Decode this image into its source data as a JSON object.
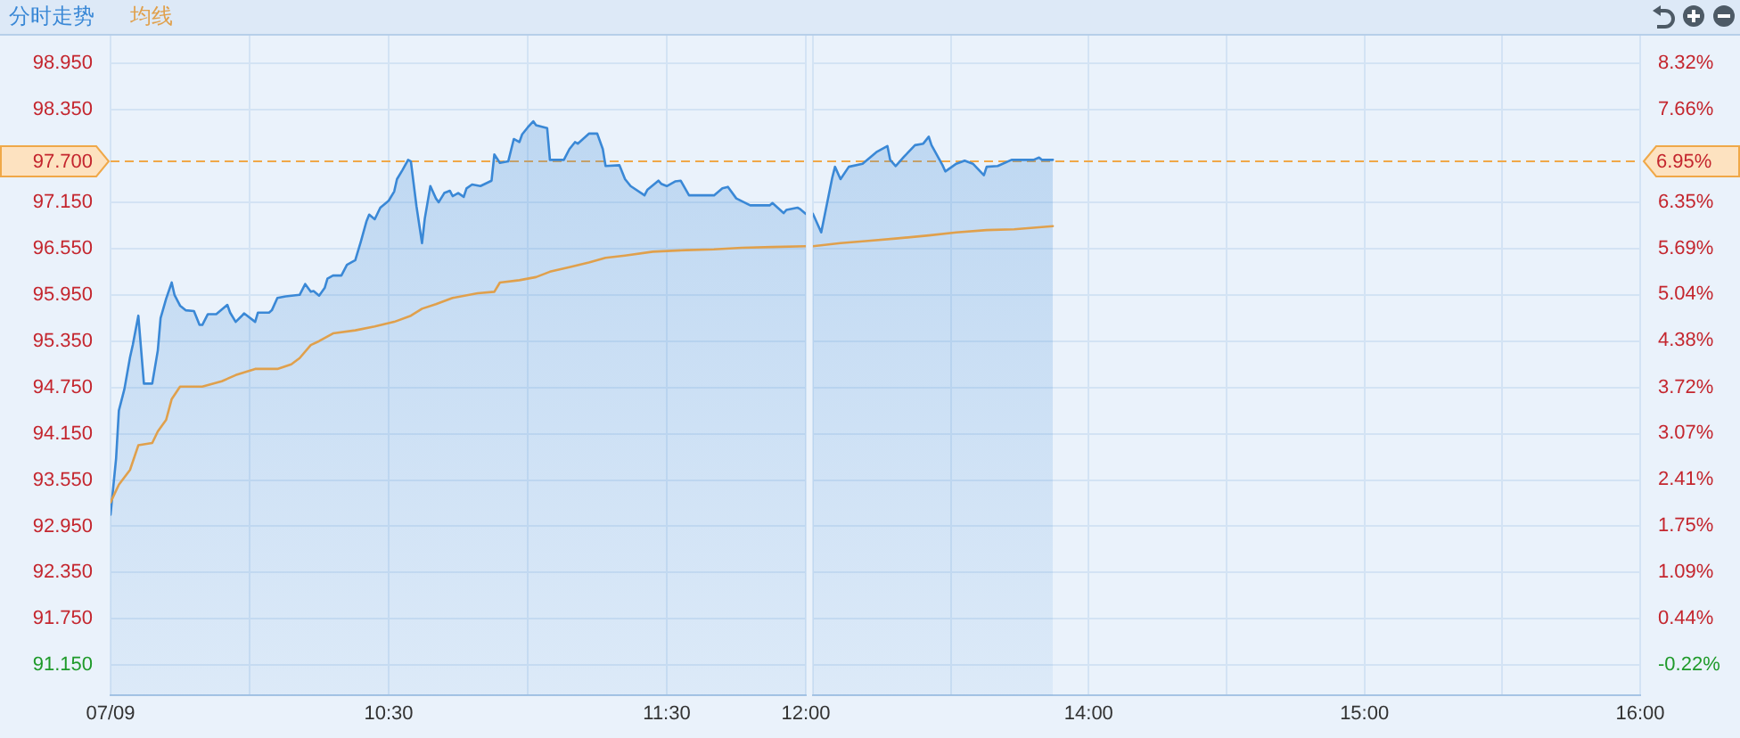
{
  "chart_data": [
    {
      "type": "line",
      "xlim": [
        9.5,
        12
      ],
      "xticks": [
        {
          "value": 9.5,
          "label": "07/09"
        },
        {
          "value": 10,
          "label": null
        },
        {
          "value": 10.5,
          "label": "10:30"
        },
        {
          "value": 11,
          "label": null
        },
        {
          "value": 11.5,
          "label": "11:30"
        },
        {
          "value": 12,
          "label": "12:00"
        }
      ],
      "ylim": [
        90.76,
        99.31
      ],
      "yticks": [
        {
          "value": 98.95,
          "label": "98.950"
        },
        {
          "value": 98.35,
          "label": "98.350"
        },
        {
          "value": 97.15,
          "label": "97.150"
        },
        {
          "value": 96.55,
          "label": "96.550"
        },
        {
          "value": 95.95,
          "label": "95.950"
        },
        {
          "value": 95.35,
          "label": "95.350"
        },
        {
          "value": 94.75,
          "label": "94.750"
        },
        {
          "value": 94.15,
          "label": "94.150"
        },
        {
          "value": 93.55,
          "label": "93.550"
        },
        {
          "value": 92.95,
          "label": "92.950"
        },
        {
          "value": 92.35,
          "label": "92.350"
        },
        {
          "value": 91.75,
          "label": "91.750"
        },
        {
          "value": 91.15,
          "label": "91.150"
        }
      ],
      "grid": true,
      "legend": "top left",
      "ref_lines": [
        {
          "axis": "y",
          "value": 97.7,
          "label": "97.700",
          "color": "#f0a848",
          "line_style": "dashed"
        }
      ],
      "series": [
        {
          "name": "分时走势",
          "type": "area",
          "color": "#3a88d6",
          "x": [
            9.5,
            9.52,
            9.53,
            9.55,
            9.57,
            9.58,
            9.6,
            9.62,
            9.65,
            9.67,
            9.68,
            9.7,
            9.72,
            9.73,
            9.75,
            9.77,
            9.8,
            9.82,
            9.83,
            9.85,
            9.88,
            9.92,
            9.93,
            9.95,
            9.97,
            9.98,
            10.02,
            10.03,
            10.07,
            10.08,
            10.1,
            10.13,
            10.18,
            10.2,
            10.22,
            10.23,
            10.25,
            10.27,
            10.28,
            10.3,
            10.33,
            10.35,
            10.38,
            10.4,
            10.42,
            10.43,
            10.45,
            10.47,
            10.5,
            10.52,
            10.53,
            10.55,
            10.57,
            10.58,
            10.6,
            10.62,
            10.63,
            10.65,
            10.67,
            10.68,
            10.7,
            10.72,
            10.73,
            10.75,
            10.77,
            10.78,
            10.8,
            10.83,
            10.87,
            10.88,
            10.9,
            10.93,
            10.95,
            10.97,
            10.98,
            11.0,
            11.02,
            11.03,
            11.07,
            11.08,
            11.13,
            11.15,
            11.17,
            11.18,
            11.22,
            11.25,
            11.27,
            11.28,
            11.33,
            11.35,
            11.37,
            11.42,
            11.43,
            11.47,
            11.48,
            11.5,
            11.53,
            11.55,
            11.58,
            11.67,
            11.7,
            11.72,
            11.75,
            11.8,
            11.87,
            11.88,
            11.92,
            11.93,
            11.97,
            11.98,
            12.0
          ],
          "values": [
            93.1,
            93.83,
            94.45,
            94.73,
            95.14,
            95.3,
            95.68,
            94.8,
            94.8,
            95.23,
            95.65,
            95.9,
            96.11,
            95.95,
            95.81,
            95.75,
            95.74,
            95.56,
            95.56,
            95.7,
            95.7,
            95.82,
            95.72,
            95.6,
            95.67,
            95.71,
            95.6,
            95.72,
            95.72,
            95.75,
            95.91,
            95.93,
            95.95,
            96.09,
            95.99,
            96.0,
            95.94,
            96.04,
            96.16,
            96.2,
            96.2,
            96.34,
            96.4,
            96.64,
            96.9,
            96.99,
            96.93,
            97.08,
            97.17,
            97.29,
            97.45,
            97.57,
            97.7,
            97.68,
            97.1,
            96.62,
            96.94,
            97.36,
            97.2,
            97.15,
            97.27,
            97.3,
            97.23,
            97.27,
            97.22,
            97.33,
            97.38,
            97.36,
            97.43,
            97.77,
            97.66,
            97.68,
            97.97,
            97.93,
            98.03,
            98.12,
            98.2,
            98.15,
            98.11,
            97.7,
            97.7,
            97.84,
            97.93,
            97.91,
            98.04,
            98.04,
            97.84,
            97.62,
            97.63,
            97.45,
            97.36,
            97.24,
            97.31,
            97.43,
            97.39,
            97.36,
            97.42,
            97.43,
            97.24,
            97.24,
            97.33,
            97.35,
            97.2,
            97.11,
            97.11,
            97.14,
            97.01,
            97.05,
            97.08,
            97.06,
            97.0
          ]
        },
        {
          "name": "均线",
          "type": "line",
          "color": "#e0a04c",
          "x": [
            9.5,
            9.53,
            9.57,
            9.6,
            9.65,
            9.67,
            9.7,
            9.72,
            9.75,
            9.83,
            9.9,
            9.95,
            10.02,
            10.1,
            10.15,
            10.18,
            10.22,
            10.25,
            10.3,
            10.38,
            10.45,
            10.52,
            10.58,
            10.62,
            10.67,
            10.73,
            10.82,
            10.88,
            10.9,
            10.97,
            11.03,
            11.08,
            11.15,
            11.22,
            11.28,
            11.35,
            11.45,
            11.57,
            11.67,
            11.77,
            11.88,
            12.0
          ],
          "values": [
            93.26,
            93.49,
            93.68,
            94.0,
            94.03,
            94.18,
            94.33,
            94.6,
            94.76,
            94.76,
            94.83,
            94.91,
            94.99,
            94.99,
            95.05,
            95.13,
            95.3,
            95.35,
            95.45,
            95.49,
            95.54,
            95.6,
            95.68,
            95.77,
            95.83,
            95.91,
            95.97,
            95.99,
            96.11,
            96.14,
            96.18,
            96.25,
            96.31,
            96.37,
            96.43,
            96.46,
            96.51,
            96.53,
            96.54,
            96.56,
            96.57,
            96.58
          ]
        }
      ]
    },
    {
      "type": "line",
      "xlim": [
        13,
        16
      ],
      "xticks": [
        {
          "value": 13,
          "label": null
        },
        {
          "value": 13.5,
          "label": null
        },
        {
          "value": 14,
          "label": "14:00"
        },
        {
          "value": 14.5,
          "label": null
        },
        {
          "value": 15,
          "label": "15:00"
        },
        {
          "value": 15.5,
          "label": null
        },
        {
          "value": 16,
          "label": "16:00"
        }
      ],
      "ylim": [
        90.76,
        99.31
      ],
      "yticks": [
        {
          "value": 98.95,
          "label": null
        },
        {
          "value": 98.35,
          "label": null
        },
        {
          "value": 97.15,
          "label": null
        },
        {
          "value": 96.55,
          "label": null
        },
        {
          "value": 95.95,
          "label": null
        },
        {
          "value": 95.35,
          "label": null
        },
        {
          "value": 94.75,
          "label": null
        },
        {
          "value": 94.15,
          "label": null
        },
        {
          "value": 93.55,
          "label": null
        },
        {
          "value": 92.95,
          "label": null
        },
        {
          "value": 92.35,
          "label": null
        },
        {
          "value": 91.75,
          "label": null
        },
        {
          "value": 91.15,
          "label": null
        }
      ],
      "y2lim": [
        -0.65,
        8.71
      ],
      "y2ticks": [
        {
          "value": 8.32,
          "label": "8.32%"
        },
        {
          "value": 7.66,
          "label": "7.66%"
        },
        {
          "value": 6.35,
          "label": "6.35%"
        },
        {
          "value": 5.69,
          "label": "5.69%"
        },
        {
          "value": 5.04,
          "label": "5.04%"
        },
        {
          "value": 4.38,
          "label": "4.38%"
        },
        {
          "value": 3.72,
          "label": "3.72%"
        },
        {
          "value": 3.07,
          "label": "3.07%"
        },
        {
          "value": 2.41,
          "label": "2.41%"
        },
        {
          "value": 1.75,
          "label": "1.75%"
        },
        {
          "value": 1.09,
          "label": "1.09%"
        },
        {
          "value": 0.44,
          "label": "0.44%"
        },
        {
          "value": -0.22,
          "label": "-0.22%"
        }
      ],
      "tick_labels": "x",
      "grid": true,
      "ref_lines": [
        {
          "axis": "y2",
          "value": 6.95,
          "label": "6.95%",
          "color": "#f0a848",
          "line_style": "dashed"
        }
      ],
      "series": [
        {
          "type": "area",
          "color": "#3a88d6",
          "x": [
            13.0,
            13.03,
            13.07,
            13.08,
            13.1,
            13.13,
            13.18,
            13.23,
            13.27,
            13.28,
            13.3,
            13.33,
            13.37,
            13.4,
            13.42,
            13.43,
            13.47,
            13.48,
            13.52,
            13.55,
            13.58,
            13.62,
            13.63,
            13.67,
            13.72,
            13.8,
            13.82,
            13.83,
            13.87
          ],
          "values": [
            97.0,
            96.76,
            97.47,
            97.61,
            97.45,
            97.61,
            97.65,
            97.8,
            97.88,
            97.7,
            97.62,
            97.74,
            97.89,
            97.91,
            98.0,
            97.89,
            97.63,
            97.55,
            97.65,
            97.69,
            97.65,
            97.5,
            97.61,
            97.62,
            97.7,
            97.7,
            97.73,
            97.7,
            97.7
          ]
        },
        {
          "type": "line",
          "color": "#e0a04c",
          "x": [
            13.0,
            13.1,
            13.2,
            13.3,
            13.42,
            13.52,
            13.63,
            13.73,
            13.87
          ],
          "values": [
            96.58,
            96.62,
            96.65,
            96.68,
            96.72,
            96.76,
            96.79,
            96.8,
            96.84
          ]
        }
      ]
    }
  ]
}
